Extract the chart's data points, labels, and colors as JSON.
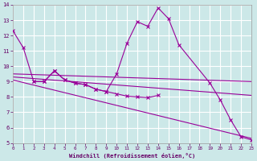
{
  "background_color": "#cce8e8",
  "grid_color": "#ffffff",
  "line_color": "#990099",
  "xlabel": "Windchill (Refroidissement éolien,°C)",
  "xlim": [
    0,
    23
  ],
  "ylim": [
    5,
    14
  ],
  "xticks": [
    0,
    1,
    2,
    3,
    4,
    5,
    6,
    7,
    8,
    9,
    10,
    11,
    12,
    13,
    14,
    15,
    16,
    17,
    18,
    19,
    20,
    21,
    22,
    23
  ],
  "yticks": [
    5,
    6,
    7,
    8,
    9,
    10,
    11,
    12,
    13,
    14
  ],
  "curve1_x": [
    0,
    1,
    2,
    3,
    4,
    5,
    6,
    7,
    8,
    9,
    10,
    11,
    12,
    13,
    14,
    15,
    16,
    19,
    20,
    21,
    22,
    23
  ],
  "curve1_y": [
    12.3,
    11.2,
    9.0,
    9.0,
    9.7,
    9.1,
    8.9,
    8.8,
    8.5,
    8.35,
    9.5,
    11.5,
    12.9,
    12.6,
    13.8,
    13.1,
    11.4,
    8.9,
    7.8,
    6.5,
    5.4,
    5.2
  ],
  "curve2_x": [
    2,
    3,
    4,
    5,
    6,
    7,
    8,
    9,
    10,
    11,
    12,
    13,
    14
  ],
  "curve2_y": [
    9.0,
    9.0,
    9.7,
    9.1,
    8.9,
    8.8,
    8.5,
    8.35,
    8.2,
    8.05,
    8.0,
    7.95,
    8.1
  ],
  "line1_x": [
    0,
    23
  ],
  "line1_y": [
    9.5,
    9.0
  ],
  "line2_x": [
    0,
    23
  ],
  "line2_y": [
    9.1,
    5.3
  ],
  "line3_x": [
    0,
    23
  ],
  "line3_y": [
    9.3,
    8.1
  ]
}
